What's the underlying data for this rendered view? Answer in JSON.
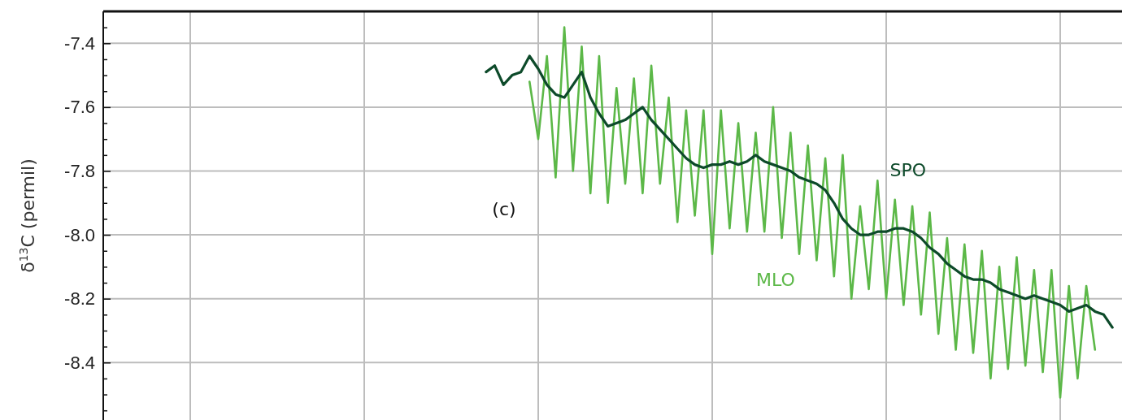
{
  "chart_data": {
    "type": "line",
    "ylabel": "δ$^{13}$C  (permil)",
    "annotations": [
      "(c)"
    ],
    "categories": [
      null,
      null,
      null,
      null,
      null,
      null,
      null,
      null,
      null,
      null,
      null,
      null,
      null,
      null,
      null,
      null,
      null,
      null,
      null,
      null,
      null,
      null,
      null,
      null,
      null,
      null,
      null,
      null,
      null,
      null,
      null,
      null,
      null,
      null,
      null,
      null,
      null,
      null,
      null,
      null,
      null,
      null,
      null,
      null,
      null,
      null,
      null,
      null,
      null,
      null,
      null,
      null,
      null,
      null,
      null,
      null,
      null,
      null,
      null,
      null,
      null,
      null,
      null,
      null,
      null,
      null,
      null,
      null,
      null,
      null,
      null,
      null,
      null,
      null,
      null,
      null,
      null,
      null,
      null,
      null,
      null,
      null,
      null,
      null,
      null,
      null,
      null,
      null,
      null,
      null,
      null,
      null,
      null,
      null,
      null,
      null,
      null,
      null,
      null,
      null,
      null,
      null,
      null,
      null,
      null,
      null,
      null,
      null,
      null,
      null,
      null,
      null,
      null,
      null,
      null,
      null,
      null,
      null
    ],
    "ylim": [
      -8.58,
      -7.3
    ],
    "yticks": [
      {
        "value": -7.35,
        "label": null
      },
      -7.4,
      {
        "value": -7.45,
        "label": null
      },
      {
        "value": -7.5,
        "label": null
      },
      {
        "value": -7.55,
        "label": null
      },
      -7.6,
      {
        "value": -7.65,
        "label": null
      },
      {
        "value": -7.7,
        "label": null
      },
      {
        "value": -7.75,
        "label": null
      },
      -7.8,
      {
        "value": -7.85,
        "label": null
      },
      {
        "value": -7.9,
        "label": null
      },
      {
        "value": -7.95,
        "label": null
      },
      {
        "value": -8,
        "label": "-8.0"
      },
      {
        "value": -8.05,
        "label": null
      },
      {
        "value": -8.1,
        "label": null
      },
      {
        "value": -8.15,
        "label": null
      },
      -8.2,
      {
        "value": -8.25,
        "label": null
      },
      {
        "value": -8.3,
        "label": null
      },
      {
        "value": -8.35,
        "label": null
      },
      -8.4,
      {
        "value": -8.45,
        "label": null
      },
      {
        "value": -8.5,
        "label": null
      },
      {
        "value": -8.55,
        "label": null
      }
    ],
    "grid": true,
    "series": [
      {
        "name": "MLO",
        "color": "#5cb848",
        "values": [
          null,
          null,
          null,
          null,
          null,
          null,
          null,
          null,
          null,
          null,
          null,
          null,
          null,
          null,
          null,
          null,
          null,
          null,
          null,
          null,
          null,
          null,
          null,
          null,
          null,
          null,
          null,
          null,
          null,
          null,
          null,
          null,
          null,
          null,
          null,
          null,
          null,
          null,
          null,
          null,
          null,
          null,
          null,
          null,
          null,
          null,
          null,
          null,
          null,
          -7.52,
          -7.7,
          -7.44,
          -7.82,
          -7.35,
          -7.8,
          -7.41,
          -7.87,
          -7.44,
          -7.9,
          -7.54,
          -7.84,
          -7.51,
          -7.87,
          -7.47,
          -7.84,
          -7.57,
          -7.96,
          -7.61,
          -7.94,
          -7.61,
          -8.06,
          -7.61,
          -7.98,
          -7.65,
          -7.99,
          -7.68,
          -7.99,
          -7.6,
          -8.01,
          -7.68,
          -8.06,
          -7.72,
          -8.08,
          -7.76,
          -8.13,
          -7.75,
          -8.2,
          -7.91,
          -8.17,
          -7.83,
          -8.2,
          -7.89,
          -8.22,
          -7.91,
          -8.25,
          -7.93,
          -8.31,
          -8.01,
          -8.36,
          -8.03,
          -8.37,
          -8.05,
          -8.45,
          -8.1,
          -8.42,
          -8.07,
          -8.41,
          -8.11,
          -8.43,
          -8.11,
          -8.51,
          -8.16,
          -8.45,
          -8.16,
          -8.36,
          null,
          null,
          null
        ]
      },
      {
        "name": "SPO",
        "color": "#0d4a2a",
        "values": [
          null,
          null,
          null,
          null,
          null,
          null,
          null,
          null,
          null,
          null,
          null,
          null,
          null,
          null,
          null,
          null,
          null,
          null,
          null,
          null,
          null,
          null,
          null,
          null,
          null,
          null,
          null,
          null,
          null,
          null,
          null,
          null,
          null,
          null,
          null,
          null,
          null,
          null,
          null,
          null,
          null,
          null,
          null,
          null,
          -7.49,
          -7.47,
          -7.53,
          -7.5,
          -7.49,
          -7.44,
          -7.48,
          -7.53,
          -7.56,
          -7.57,
          -7.53,
          -7.49,
          -7.57,
          -7.62,
          -7.66,
          -7.65,
          -7.64,
          -7.62,
          -7.6,
          -7.64,
          -7.67,
          -7.7,
          -7.73,
          -7.76,
          -7.78,
          -7.79,
          -7.78,
          -7.78,
          -7.77,
          -7.78,
          -7.77,
          -7.75,
          -7.77,
          -7.78,
          -7.79,
          -7.8,
          -7.82,
          -7.83,
          -7.84,
          -7.86,
          -7.9,
          -7.95,
          -7.98,
          -8.0,
          -8.0,
          -7.99,
          -7.99,
          -7.98,
          -7.98,
          -7.99,
          -8.01,
          -8.04,
          -8.06,
          -8.09,
          -8.11,
          -8.13,
          -8.14,
          -8.14,
          -8.15,
          -8.17,
          -8.18,
          -8.19,
          -8.2,
          -8.19,
          -8.2,
          -8.21,
          -8.22,
          -8.24,
          -8.23,
          -8.22,
          -8.24,
          -8.25,
          -8.29,
          null
        ]
      }
    ]
  }
}
